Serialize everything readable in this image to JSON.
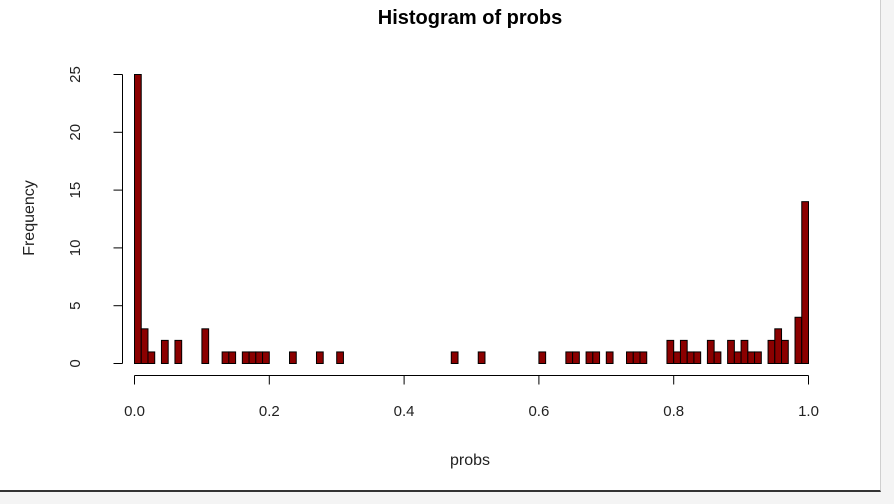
{
  "chart_data": {
    "type": "bar",
    "title": "Histogram of probs",
    "xlabel": "probs",
    "ylabel": "Frequency",
    "xlim": [
      0.0,
      1.0
    ],
    "ylim": [
      0,
      25
    ],
    "bin_width": 0.01,
    "x_ticks": [
      "0.0",
      "0.2",
      "0.4",
      "0.6",
      "0.8",
      "1.0"
    ],
    "x_tick_values": [
      0.0,
      0.2,
      0.4,
      0.6,
      0.8,
      1.0
    ],
    "y_ticks": [
      "0",
      "5",
      "10",
      "15",
      "20",
      "25"
    ],
    "y_tick_values": [
      0,
      5,
      10,
      15,
      20,
      25
    ],
    "bar_color": "#8b0000",
    "grid": false,
    "bin_starts": [
      0.0,
      0.01,
      0.02,
      0.03,
      0.04,
      0.05,
      0.06,
      0.07,
      0.08,
      0.09,
      0.1,
      0.11,
      0.12,
      0.13,
      0.14,
      0.15,
      0.16,
      0.17,
      0.18,
      0.19,
      0.2,
      0.21,
      0.22,
      0.23,
      0.24,
      0.25,
      0.26,
      0.27,
      0.28,
      0.29,
      0.3,
      0.31,
      0.32,
      0.33,
      0.34,
      0.35,
      0.36,
      0.37,
      0.38,
      0.39,
      0.4,
      0.41,
      0.42,
      0.43,
      0.44,
      0.45,
      0.46,
      0.47,
      0.48,
      0.49,
      0.5,
      0.51,
      0.52,
      0.53,
      0.54,
      0.55,
      0.56,
      0.57,
      0.58,
      0.59,
      0.6,
      0.61,
      0.62,
      0.63,
      0.64,
      0.65,
      0.66,
      0.67,
      0.68,
      0.69,
      0.7,
      0.71,
      0.72,
      0.73,
      0.74,
      0.75,
      0.76,
      0.77,
      0.78,
      0.79,
      0.8,
      0.81,
      0.82,
      0.83,
      0.84,
      0.85,
      0.86,
      0.87,
      0.88,
      0.89,
      0.9,
      0.91,
      0.92,
      0.93,
      0.94,
      0.95,
      0.96,
      0.97,
      0.98,
      0.99
    ],
    "values": [
      25,
      3,
      1,
      0,
      2,
      0,
      2,
      0,
      0,
      0,
      3,
      0,
      0,
      1,
      1,
      0,
      1,
      1,
      1,
      1,
      0,
      0,
      0,
      1,
      0,
      0,
      0,
      1,
      0,
      0,
      1,
      0,
      0,
      0,
      0,
      0,
      0,
      0,
      0,
      0,
      0,
      0,
      0,
      0,
      0,
      0,
      0,
      1,
      0,
      0,
      0,
      1,
      0,
      0,
      0,
      0,
      0,
      0,
      0,
      0,
      1,
      0,
      0,
      0,
      1,
      1,
      0,
      1,
      1,
      0,
      1,
      0,
      0,
      1,
      1,
      1,
      0,
      0,
      0,
      2,
      1,
      2,
      1,
      1,
      0,
      2,
      1,
      0,
      2,
      1,
      2,
      1,
      1,
      0,
      2,
      3,
      2,
      0,
      4,
      14
    ]
  }
}
